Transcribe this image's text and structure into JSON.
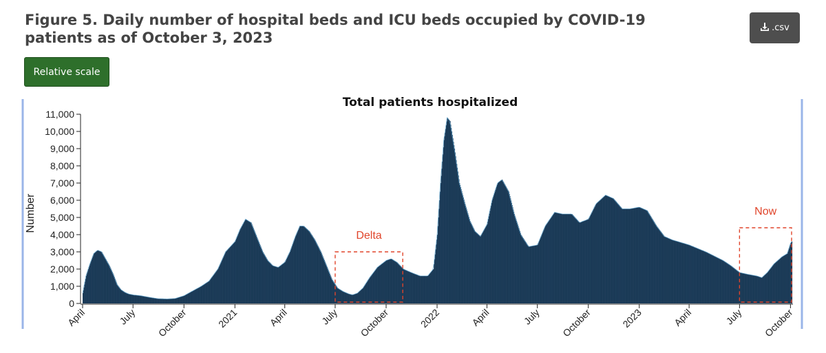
{
  "header": {
    "title": "Figure 5. Daily number of hospital beds and ICU beds occupied by COVID-19 patients as of October 3, 2023",
    "download_label": ".csv",
    "download_icon": "download-icon",
    "scale_button_label": "Relative scale"
  },
  "colors": {
    "bar": "#1b3a57",
    "bar_edge": "#5fa8d3",
    "annotation": "#e0442a",
    "frame": "#9ab5e8",
    "download_bg": "#4e4e4e",
    "scale_bg": "#2e6f2b"
  },
  "chart_data": {
    "type": "bar",
    "title": "Total patients hospitalized",
    "ylabel": "Number",
    "xlabel": "",
    "ylim": [
      0,
      11000
    ],
    "y_ticks": [
      0,
      1000,
      2000,
      3000,
      4000,
      5000,
      6000,
      7000,
      8000,
      9000,
      10000,
      11000
    ],
    "y_tick_labels": [
      "0",
      "1,000",
      "2,000",
      "3,000",
      "4,000",
      "5,000",
      "6,000",
      "7,000",
      "8,000",
      "9,000",
      "10,000",
      "11,000"
    ],
    "x_range": [
      "2020-04-01",
      "2023-10-03"
    ],
    "x_ticks": [
      {
        "date": "2020-04-01",
        "label": "April"
      },
      {
        "date": "2020-07-01",
        "label": "July"
      },
      {
        "date": "2020-10-01",
        "label": "October"
      },
      {
        "date": "2021-01-01",
        "label": "2021"
      },
      {
        "date": "2021-04-01",
        "label": "April"
      },
      {
        "date": "2021-07-01",
        "label": "July"
      },
      {
        "date": "2021-10-01",
        "label": "October"
      },
      {
        "date": "2022-01-01",
        "label": "2022"
      },
      {
        "date": "2022-04-01",
        "label": "April"
      },
      {
        "date": "2022-07-01",
        "label": "July"
      },
      {
        "date": "2022-10-01",
        "label": "October"
      },
      {
        "date": "2023-01-01",
        "label": "2023"
      },
      {
        "date": "2023-04-01",
        "label": "April"
      },
      {
        "date": "2023-07-01",
        "label": "July"
      },
      {
        "date": "2023-10-01",
        "label": "October"
      }
    ],
    "series": [
      {
        "name": "",
        "points": [
          [
            "2020-04-01",
            600
          ],
          [
            "2020-04-07",
            1600
          ],
          [
            "2020-04-14",
            2300
          ],
          [
            "2020-04-21",
            2900
          ],
          [
            "2020-04-28",
            3100
          ],
          [
            "2020-05-05",
            3000
          ],
          [
            "2020-05-12",
            2600
          ],
          [
            "2020-05-19",
            2200
          ],
          [
            "2020-05-26",
            1700
          ],
          [
            "2020-06-02",
            1100
          ],
          [
            "2020-06-09",
            800
          ],
          [
            "2020-06-16",
            650
          ],
          [
            "2020-06-23",
            550
          ],
          [
            "2020-07-01",
            500
          ],
          [
            "2020-07-15",
            450
          ],
          [
            "2020-08-01",
            350
          ],
          [
            "2020-08-15",
            280
          ],
          [
            "2020-09-01",
            260
          ],
          [
            "2020-09-15",
            290
          ],
          [
            "2020-10-01",
            450
          ],
          [
            "2020-10-15",
            700
          ],
          [
            "2020-11-01",
            1000
          ],
          [
            "2020-11-15",
            1300
          ],
          [
            "2020-12-01",
            2000
          ],
          [
            "2020-12-15",
            3000
          ],
          [
            "2021-01-01",
            3600
          ],
          [
            "2021-01-10",
            4300
          ],
          [
            "2021-01-20",
            4900
          ],
          [
            "2021-01-30",
            4700
          ],
          [
            "2021-02-10",
            3800
          ],
          [
            "2021-02-20",
            3000
          ],
          [
            "2021-03-01",
            2500
          ],
          [
            "2021-03-10",
            2200
          ],
          [
            "2021-03-20",
            2100
          ],
          [
            "2021-04-01",
            2400
          ],
          [
            "2021-04-10",
            3000
          ],
          [
            "2021-04-20",
            3900
          ],
          [
            "2021-04-28",
            4500
          ],
          [
            "2021-05-05",
            4500
          ],
          [
            "2021-05-15",
            4200
          ],
          [
            "2021-05-25",
            3700
          ],
          [
            "2021-06-05",
            3000
          ],
          [
            "2021-06-15",
            2200
          ],
          [
            "2021-06-25",
            1400
          ],
          [
            "2021-07-05",
            900
          ],
          [
            "2021-07-15",
            700
          ],
          [
            "2021-07-25",
            560
          ],
          [
            "2021-08-01",
            500
          ],
          [
            "2021-08-10",
            600
          ],
          [
            "2021-08-20",
            900
          ],
          [
            "2021-09-01",
            1500
          ],
          [
            "2021-09-15",
            2100
          ],
          [
            "2021-10-01",
            2500
          ],
          [
            "2021-10-10",
            2600
          ],
          [
            "2021-10-20",
            2400
          ],
          [
            "2021-11-01",
            2000
          ],
          [
            "2021-11-15",
            1800
          ],
          [
            "2021-12-01",
            1600
          ],
          [
            "2021-12-15",
            1600
          ],
          [
            "2021-12-25",
            2000
          ],
          [
            "2022-01-01",
            4000
          ],
          [
            "2022-01-07",
            7000
          ],
          [
            "2022-01-13",
            9500
          ],
          [
            "2022-01-19",
            10800
          ],
          [
            "2022-01-24",
            10600
          ],
          [
            "2022-02-01",
            9000
          ],
          [
            "2022-02-10",
            7000
          ],
          [
            "2022-02-20",
            5800
          ],
          [
            "2022-03-01",
            4800
          ],
          [
            "2022-03-10",
            4200
          ],
          [
            "2022-03-20",
            3900
          ],
          [
            "2022-04-01",
            4600
          ],
          [
            "2022-04-10",
            6000
          ],
          [
            "2022-04-20",
            7000
          ],
          [
            "2022-04-28",
            7200
          ],
          [
            "2022-05-10",
            6500
          ],
          [
            "2022-05-20",
            5200
          ],
          [
            "2022-06-01",
            4000
          ],
          [
            "2022-06-15",
            3300
          ],
          [
            "2022-07-01",
            3400
          ],
          [
            "2022-07-15",
            4500
          ],
          [
            "2022-08-01",
            5300
          ],
          [
            "2022-08-15",
            5200
          ],
          [
            "2022-09-01",
            5200
          ],
          [
            "2022-09-15",
            4700
          ],
          [
            "2022-10-01",
            4900
          ],
          [
            "2022-10-15",
            5800
          ],
          [
            "2022-11-01",
            6300
          ],
          [
            "2022-11-15",
            6100
          ],
          [
            "2022-12-01",
            5500
          ],
          [
            "2022-12-15",
            5500
          ],
          [
            "2023-01-01",
            5600
          ],
          [
            "2023-01-15",
            5400
          ],
          [
            "2023-02-01",
            4500
          ],
          [
            "2023-02-15",
            3900
          ],
          [
            "2023-03-01",
            3700
          ],
          [
            "2023-04-01",
            3400
          ],
          [
            "2023-05-01",
            3000
          ],
          [
            "2023-06-01",
            2500
          ],
          [
            "2023-06-15",
            2200
          ],
          [
            "2023-07-01",
            1800
          ],
          [
            "2023-07-15",
            1700
          ],
          [
            "2023-08-01",
            1600
          ],
          [
            "2023-08-10",
            1500
          ],
          [
            "2023-08-20",
            1800
          ],
          [
            "2023-09-01",
            2300
          ],
          [
            "2023-09-15",
            2700
          ],
          [
            "2023-09-25",
            2900
          ],
          [
            "2023-10-01",
            3500
          ],
          [
            "2023-10-03",
            3600
          ]
        ]
      }
    ],
    "annotations": [
      {
        "label": "Delta",
        "start": "2021-07-01",
        "end": "2021-10-31",
        "y_top": 3000,
        "y_bottom": 0
      },
      {
        "label": "Now",
        "start": "2023-07-01",
        "end": "2023-10-03",
        "y_top": 4400,
        "y_bottom": 0
      }
    ],
    "grid": false,
    "legend": "none"
  }
}
